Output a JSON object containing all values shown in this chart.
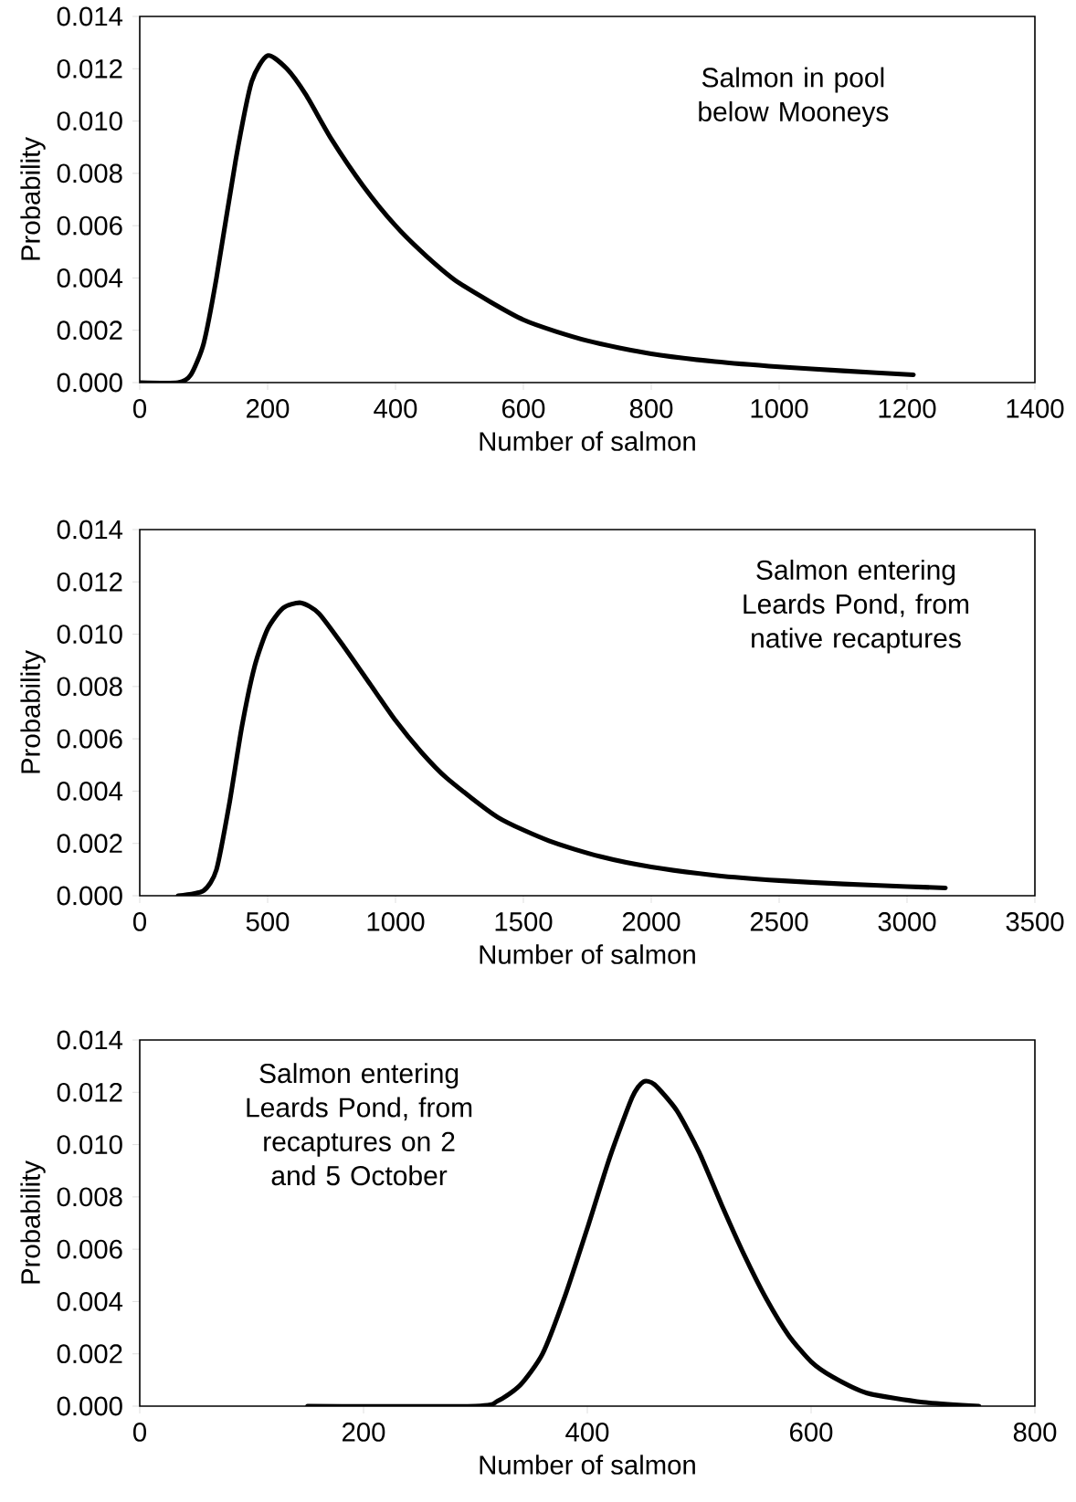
{
  "chart_data": [
    {
      "type": "line",
      "xlabel": "Number of salmon",
      "ylabel": "Probability",
      "annotations": [
        "Salmon in pool below Mooneys"
      ],
      "series": [
        {
          "color": "#000000",
          "x": [
            0,
            60,
            80,
            100,
            120,
            150,
            175,
            200,
            230,
            260,
            300,
            350,
            400,
            450,
            500,
            600,
            700,
            800,
            900,
            1000,
            1100,
            1210
          ],
          "values": [
            0,
            0,
            0.0003,
            0.0015,
            0.004,
            0.0085,
            0.0115,
            0.0125,
            0.012,
            0.011,
            0.0093,
            0.0075,
            0.006,
            0.0048,
            0.0038,
            0.0024,
            0.0016,
            0.0011,
            0.0008,
            0.0006,
            0.00045,
            0.0003
          ]
        }
      ],
      "xlim": [
        0,
        1400
      ],
      "xticks": [
        0,
        200,
        400,
        600,
        800,
        1000,
        1200,
        1400
      ],
      "ylim": [
        0,
        0.014
      ],
      "yticks": [
        {
          "value": 0,
          "label": "0.000"
        },
        {
          "value": 0.002,
          "label": "0.002"
        },
        {
          "value": 0.004,
          "label": "0.004"
        },
        {
          "value": 0.006,
          "label": "0.006"
        },
        {
          "value": 0.008,
          "label": "0.008"
        },
        {
          "value": 0.01,
          "label": "0.010"
        },
        {
          "value": 0.012,
          "label": "0.012"
        },
        {
          "value": 0.014,
          "label": "0.014"
        }
      ],
      "grid": false,
      "marker": "none",
      "line_style": "solid"
    },
    {
      "type": "line",
      "xlabel": "Number of salmon",
      "ylabel": "Probability",
      "annotations": [
        "Salmon entering Leards Pond, from native recaptures"
      ],
      "series": [
        {
          "color": "#000000",
          "x": [
            150,
            250,
            300,
            350,
            400,
            450,
            500,
            560,
            630,
            700,
            800,
            900,
            1000,
            1100,
            1200,
            1400,
            1600,
            1800,
            2000,
            2250,
            2500,
            2750,
            3000,
            3150
          ],
          "values": [
            0,
            0.0002,
            0.001,
            0.0035,
            0.0065,
            0.0088,
            0.0102,
            0.011,
            0.0112,
            0.0108,
            0.0095,
            0.0081,
            0.0067,
            0.0055,
            0.0045,
            0.003,
            0.0021,
            0.0015,
            0.0011,
            0.00078,
            0.00058,
            0.00045,
            0.00035,
            0.0003
          ]
        }
      ],
      "xlim": [
        0,
        3500
      ],
      "xticks": [
        0,
        500,
        1000,
        1500,
        2000,
        2500,
        3000,
        3500
      ],
      "ylim": [
        0,
        0.014
      ],
      "yticks": [
        {
          "value": 0,
          "label": "0.000"
        },
        {
          "value": 0.002,
          "label": "0.002"
        },
        {
          "value": 0.004,
          "label": "0.004"
        },
        {
          "value": 0.006,
          "label": "0.006"
        },
        {
          "value": 0.008,
          "label": "0.008"
        },
        {
          "value": 0.01,
          "label": "0.010"
        },
        {
          "value": 0.012,
          "label": "0.012"
        },
        {
          "value": 0.014,
          "label": "0.014"
        }
      ],
      "grid": false,
      "marker": "none",
      "line_style": "solid"
    },
    {
      "type": "line",
      "xlabel": "Number of salmon",
      "ylabel": "Probability",
      "annotations": [
        "Salmon entering Leards Pond, from recaptures on 2 and 5 October"
      ],
      "series": [
        {
          "color": "#000000",
          "x": [
            150,
            300,
            320,
            340,
            360,
            380,
            400,
            420,
            440,
            450,
            460,
            480,
            500,
            520,
            540,
            560,
            580,
            600,
            620,
            650,
            700,
            750
          ],
          "values": [
            0,
            0,
            0.0002,
            0.0008,
            0.002,
            0.0042,
            0.0068,
            0.0095,
            0.0118,
            0.0124,
            0.0123,
            0.0113,
            0.0097,
            0.0077,
            0.0058,
            0.0041,
            0.0027,
            0.0017,
            0.0011,
            0.0005,
            0.00015,
            0
          ]
        }
      ],
      "xlim": [
        0,
        800
      ],
      "xticks": [
        0,
        200,
        400,
        600,
        800
      ],
      "ylim": [
        0,
        0.014
      ],
      "yticks": [
        {
          "value": 0,
          "label": "0.000"
        },
        {
          "value": 0.002,
          "label": "0.002"
        },
        {
          "value": 0.004,
          "label": "0.004"
        },
        {
          "value": 0.006,
          "label": "0.006"
        },
        {
          "value": 0.008,
          "label": "0.008"
        },
        {
          "value": 0.01,
          "label": "0.010"
        },
        {
          "value": 0.012,
          "label": "0.012"
        },
        {
          "value": 0.014,
          "label": "0.014"
        }
      ],
      "grid": false,
      "marker": "none",
      "line_style": "solid"
    }
  ]
}
